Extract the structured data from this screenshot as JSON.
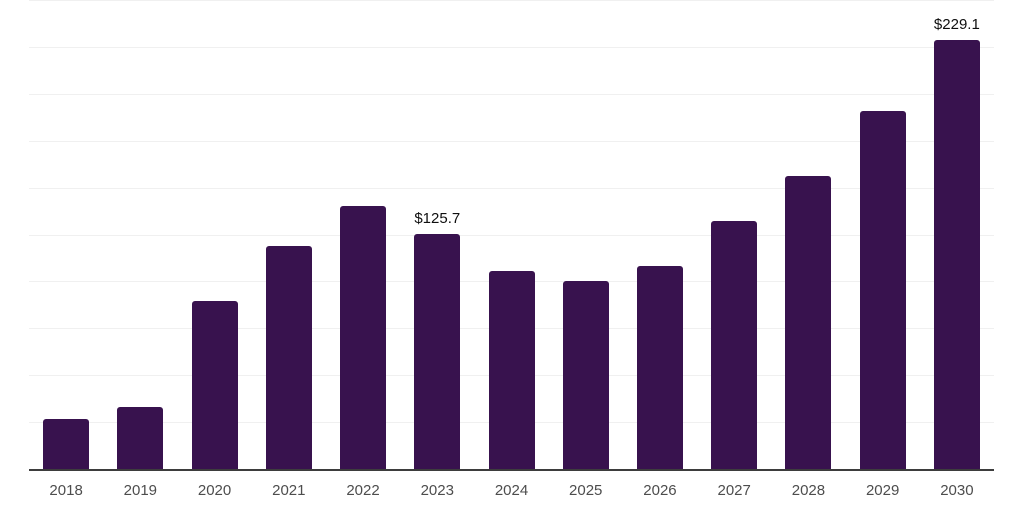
{
  "chart_data": {
    "type": "bar",
    "title": "",
    "xlabel": "",
    "ylabel": "",
    "categories": [
      "2018",
      "2019",
      "2020",
      "2021",
      "2022",
      "2023",
      "2024",
      "2025",
      "2026",
      "2027",
      "2028",
      "2029",
      "2030"
    ],
    "values": [
      27,
      33.5,
      90,
      119.5,
      140.5,
      125.7,
      106,
      100.5,
      109,
      132.5,
      156.5,
      191.5,
      229.1
    ],
    "value_labels": [
      "",
      "",
      "",
      "",
      "",
      "$125.7",
      "",
      "",
      "",
      "",
      "",
      "",
      "$229.1"
    ],
    "currency_prefix": "$",
    "ylim": [
      0,
      250
    ],
    "gridline_step": 25,
    "grid": "horizontal",
    "legend": "none",
    "y_axis_labels_visible": false,
    "colors": {
      "bar": "#38124e",
      "gridline": "#f0f0f0",
      "axis_line": "#3d3d3d",
      "x_tick_label": "#4d4d4d",
      "value_label": "#0f0f0f",
      "background": "#ffffff"
    }
  }
}
